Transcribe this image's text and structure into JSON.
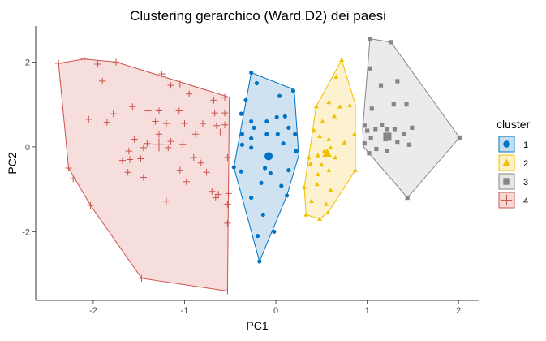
{
  "chart_data": {
    "type": "scatter",
    "title": "Clustering gerarchico (Ward.D2) dei paesi",
    "xlabel": "PC1",
    "ylabel": "PC2",
    "xlim": [
      -2.63,
      2.22
    ],
    "ylim": [
      -3.62,
      2.85
    ],
    "xticks": [
      -2,
      -1,
      0,
      1,
      2
    ],
    "yticks": [
      -2,
      0,
      2
    ],
    "grid": false,
    "legend": {
      "title": "cluster",
      "position": "right"
    },
    "series": [
      {
        "name": "1",
        "color": "#0073C2",
        "fill": "#C5DDF0",
        "shape": "circle",
        "centroid": [
          -0.08,
          -0.22
        ],
        "hull": [
          [
            -0.27,
            1.75
          ],
          [
            0.2,
            1.35
          ],
          [
            0.25,
            -0.2
          ],
          [
            0.12,
            -1.15
          ],
          [
            -0.18,
            -2.7
          ],
          [
            -0.46,
            -0.48
          ]
        ],
        "points": [
          [
            -0.27,
            1.75
          ],
          [
            -0.21,
            1.5
          ],
          [
            -0.33,
            1.1
          ],
          [
            0.04,
            1.2
          ],
          [
            0.19,
            1.32
          ],
          [
            -0.38,
            0.78
          ],
          [
            -0.27,
            0.6
          ],
          [
            -0.24,
            0.45
          ],
          [
            -0.1,
            0.6
          ],
          [
            0.01,
            0.7
          ],
          [
            0.1,
            0.72
          ],
          [
            0.14,
            0.45
          ],
          [
            -0.37,
            0.3
          ],
          [
            -0.27,
            0.2
          ],
          [
            -0.1,
            0.3
          ],
          [
            0.02,
            0.3
          ],
          [
            0.21,
            0.3
          ],
          [
            -0.37,
            0.05
          ],
          [
            -0.27,
            -0.02
          ],
          [
            0.08,
            0.08
          ],
          [
            0.22,
            -0.1
          ],
          [
            -0.46,
            -0.48
          ],
          [
            -0.38,
            -0.58
          ],
          [
            -0.12,
            -0.5
          ],
          [
            -0.06,
            -0.62
          ],
          [
            0.14,
            -0.55
          ],
          [
            -0.16,
            -0.85
          ],
          [
            0.06,
            -0.92
          ],
          [
            0.12,
            -1.15
          ],
          [
            -0.27,
            -1.2
          ],
          [
            -0.14,
            -1.6
          ],
          [
            -0.02,
            -2.0
          ],
          [
            -0.2,
            -2.1
          ],
          [
            -0.18,
            -2.7
          ]
        ]
      },
      {
        "name": "2",
        "color": "#EFC000",
        "fill": "#FBF0C8",
        "shape": "triangle",
        "centroid": [
          0.56,
          -0.15
        ],
        "hull": [
          [
            0.72,
            2.05
          ],
          [
            0.87,
            1.0
          ],
          [
            0.87,
            -0.55
          ],
          [
            0.57,
            -1.55
          ],
          [
            0.48,
            -1.7
          ],
          [
            0.33,
            -1.6
          ],
          [
            0.31,
            -0.95
          ],
          [
            0.36,
            -0.25
          ],
          [
            0.44,
            0.95
          ]
        ],
        "points": [
          [
            0.72,
            2.05
          ],
          [
            0.66,
            1.65
          ],
          [
            0.44,
            0.95
          ],
          [
            0.58,
            1.05
          ],
          [
            0.7,
            0.95
          ],
          [
            0.81,
            0.98
          ],
          [
            0.51,
            0.6
          ],
          [
            0.64,
            0.72
          ],
          [
            0.86,
            0.3
          ],
          [
            0.42,
            0.38
          ],
          [
            0.48,
            0.25
          ],
          [
            0.58,
            0.18
          ],
          [
            0.75,
            0.1
          ],
          [
            0.6,
            -0.02
          ],
          [
            0.53,
            -0.1
          ],
          [
            0.46,
            -0.2
          ],
          [
            0.65,
            -0.25
          ],
          [
            0.36,
            -0.25
          ],
          [
            0.38,
            -0.4
          ],
          [
            0.5,
            -0.42
          ],
          [
            0.58,
            -0.55
          ],
          [
            0.87,
            -0.55
          ],
          [
            0.46,
            -0.65
          ],
          [
            0.31,
            -0.95
          ],
          [
            0.45,
            -0.88
          ],
          [
            0.6,
            -1.02
          ],
          [
            0.39,
            -1.28
          ],
          [
            0.55,
            -1.35
          ],
          [
            0.57,
            -1.55
          ],
          [
            0.48,
            -1.7
          ],
          [
            0.33,
            -1.6
          ]
        ]
      },
      {
        "name": "3",
        "color": "#868686",
        "fill": "#E7E7E7",
        "shape": "square",
        "centroid": [
          1.22,
          0.24
        ],
        "hull": [
          [
            1.03,
            2.55
          ],
          [
            1.26,
            2.47
          ],
          [
            2.01,
            0.22
          ],
          [
            1.44,
            -1.2
          ],
          [
            0.96,
            0.0
          ],
          [
            0.95,
            0.42
          ]
        ],
        "points": [
          [
            1.03,
            2.55
          ],
          [
            1.26,
            2.47
          ],
          [
            1.03,
            1.85
          ],
          [
            1.15,
            1.45
          ],
          [
            1.33,
            1.55
          ],
          [
            1.29,
            1.0
          ],
          [
            1.43,
            1.0
          ],
          [
            1.05,
            0.9
          ],
          [
            1.3,
            0.42
          ],
          [
            1.16,
            0.52
          ],
          [
            0.97,
            0.5
          ],
          [
            1.0,
            0.38
          ],
          [
            1.09,
            0.42
          ],
          [
            1.22,
            0.42
          ],
          [
            1.4,
            0.3
          ],
          [
            1.49,
            0.45
          ],
          [
            1.04,
            0.2
          ],
          [
            1.2,
            0.18
          ],
          [
            1.33,
            0.12
          ],
          [
            1.46,
            0.05
          ],
          [
            0.97,
            0.08
          ],
          [
            1.1,
            -0.05
          ],
          [
            1.22,
            -0.1
          ],
          [
            1.02,
            -0.15
          ],
          [
            2.01,
            0.22
          ],
          [
            1.44,
            -1.2
          ]
        ]
      },
      {
        "name": "4",
        "color": "#CD534C",
        "fill": "#F4D8D6",
        "shape": "cross",
        "centroid": [
          -1.28,
          0.05
        ],
        "hull": [
          [
            -2.38,
            1.97
          ],
          [
            -2.1,
            2.07
          ],
          [
            -1.75,
            2.0
          ],
          [
            -0.51,
            1.17
          ],
          [
            -0.53,
            -3.4
          ],
          [
            -1.47,
            -3.1
          ],
          [
            -2.03,
            -1.38
          ],
          [
            -2.27,
            -0.5
          ]
        ],
        "points": [
          [
            -2.38,
            1.97
          ],
          [
            -2.1,
            2.07
          ],
          [
            -1.95,
            1.95
          ],
          [
            -1.75,
            2.0
          ],
          [
            -1.25,
            1.72
          ],
          [
            -1.9,
            1.55
          ],
          [
            -1.15,
            1.45
          ],
          [
            -1.05,
            1.48
          ],
          [
            -0.56,
            1.17
          ],
          [
            -0.95,
            1.25
          ],
          [
            -0.68,
            1.1
          ],
          [
            -1.57,
            0.95
          ],
          [
            -1.78,
            0.78
          ],
          [
            -1.4,
            0.85
          ],
          [
            -1.28,
            0.85
          ],
          [
            -1.06,
            0.85
          ],
          [
            -0.67,
            0.8
          ],
          [
            -0.56,
            0.8
          ],
          [
            -2.05,
            0.65
          ],
          [
            -1.85,
            0.58
          ],
          [
            -1.32,
            0.6
          ],
          [
            -1.2,
            0.55
          ],
          [
            -1.0,
            0.55
          ],
          [
            -0.8,
            0.55
          ],
          [
            -0.65,
            0.5
          ],
          [
            -0.56,
            0.52
          ],
          [
            -1.28,
            0.3
          ],
          [
            -0.88,
            0.3
          ],
          [
            -0.61,
            0.35
          ],
          [
            -1.55,
            0.18
          ],
          [
            -1.41,
            0.08
          ],
          [
            -1.15,
            0.13
          ],
          [
            -1.02,
            0.06
          ],
          [
            -1.61,
            -0.1
          ],
          [
            -1.45,
            -0.02
          ],
          [
            -1.18,
            -0.02
          ],
          [
            -1.48,
            -0.28
          ],
          [
            -1.6,
            -0.3
          ],
          [
            -1.68,
            -0.32
          ],
          [
            -0.9,
            -0.25
          ],
          [
            -0.82,
            -0.38
          ],
          [
            -0.53,
            -0.25
          ],
          [
            -2.27,
            -0.5
          ],
          [
            -2.22,
            -0.75
          ],
          [
            -1.62,
            -0.6
          ],
          [
            -1.45,
            -0.72
          ],
          [
            -1.05,
            -0.55
          ],
          [
            -0.98,
            -0.82
          ],
          [
            -0.76,
            -0.6
          ],
          [
            -0.7,
            -1.05
          ],
          [
            -0.63,
            -1.12
          ],
          [
            -0.66,
            -1.2
          ],
          [
            -0.52,
            -1.1
          ],
          [
            -2.03,
            -1.38
          ],
          [
            -1.2,
            -1.28
          ],
          [
            -0.53,
            -1.35
          ],
          [
            -0.53,
            -1.8
          ],
          [
            -1.47,
            -3.1
          ],
          [
            -0.53,
            -3.4
          ]
        ]
      }
    ]
  }
}
